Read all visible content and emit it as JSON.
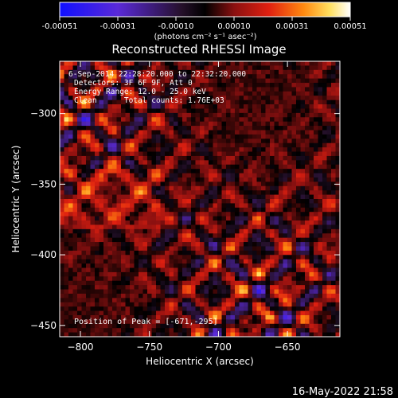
{
  "colorbar": {
    "ticks": [
      "-0.00051",
      "-0.00031",
      "-0.00010",
      "0.00010",
      "0.00031",
      "0.00051"
    ],
    "unit_label": "(photons cm⁻² s⁻¹ asec⁻²)"
  },
  "title": "Reconstructed RHESSI Image",
  "info": {
    "time": "6-Sep-2014 22:28:20.000 to 22:32:20.000",
    "detectors": "Detectors: 3F 6F 9F, Att 0",
    "energy": "Energy Range: 12.0 - 25.0 keV",
    "clean": "Clean      Total counts: 1.76E+03",
    "peak_label": "Position of Peak = ",
    "peak_value": "[-671,-295]"
  },
  "axes": {
    "xlabel": "Heliocentric X (arcsec)",
    "ylabel": "Heliocentric Y (arcsec)",
    "xlim": [
      -815,
      -612
    ],
    "ylim": [
      -458,
      -263
    ],
    "xticks": [
      {
        "value": -800,
        "label": "−800"
      },
      {
        "value": -750,
        "label": "−750"
      },
      {
        "value": -700,
        "label": "−700"
      },
      {
        "value": -650,
        "label": "−650"
      }
    ],
    "yticks": [
      {
        "value": -300,
        "label": "−300"
      },
      {
        "value": -350,
        "label": "−350"
      },
      {
        "value": -400,
        "label": "−400"
      },
      {
        "value": -450,
        "label": "−450"
      }
    ]
  },
  "timestamp": "16-May-2022 21:58"
}
